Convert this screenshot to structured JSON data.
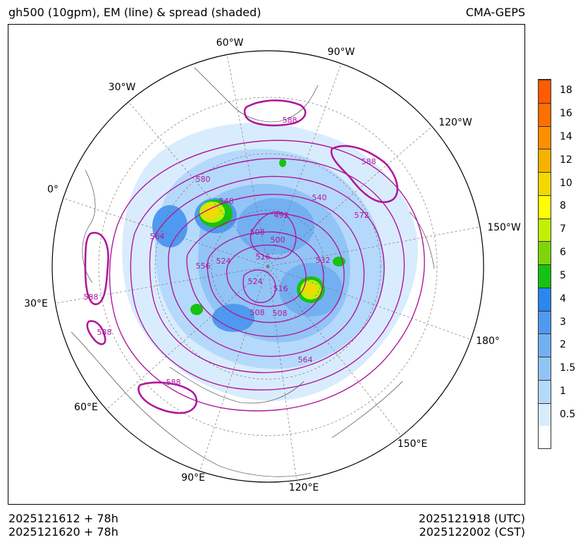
{
  "header": {
    "title": "gh500 (10gpm), EM (line) & spread (shaded)",
    "model": "CMA-GEPS"
  },
  "footer": {
    "init_utc": "2025121612 + 78h",
    "init_cst": "2025121620 + 78h",
    "valid_utc": "2025121918 (UTC)",
    "valid_cst": "2025122002 (CST)"
  },
  "map": {
    "longitude_labels": [
      {
        "text": "60°W"
      },
      {
        "text": "90°W"
      },
      {
        "text": "30°W"
      },
      {
        "text": "120°W"
      },
      {
        "text": "0°"
      },
      {
        "text": "150°W"
      },
      {
        "text": "30°E"
      },
      {
        "text": "180°"
      },
      {
        "text": "60°E"
      },
      {
        "text": "150°E"
      },
      {
        "text": "90°E"
      },
      {
        "text": "120°E"
      }
    ],
    "contour_labels": [
      "588",
      "588",
      "580",
      "548",
      "540",
      "572",
      "564",
      "556",
      "524",
      "508",
      "492",
      "500",
      "516",
      "532",
      "524",
      "516",
      "508",
      "508",
      "564",
      "588",
      "588",
      "588"
    ],
    "colors": {
      "contour": "#b0189c",
      "thick_contour": "#b0189c",
      "land": "#333333"
    }
  },
  "colorbar": {
    "ticks": [
      "0.5",
      "1",
      "1.5",
      "2",
      "3",
      "4",
      "5",
      "6",
      "7",
      "8",
      "10",
      "12",
      "14",
      "16",
      "18"
    ],
    "colors": [
      "#ffffff",
      "#d9ecfd",
      "#b5d9fb",
      "#92c4f6",
      "#72b0f2",
      "#4f9af0",
      "#2a86f0",
      "#16c212",
      "#7ed60a",
      "#c2ef06",
      "#fefe05",
      "#f4d800",
      "#f7b200",
      "#fe8f00",
      "#fe6e00",
      "#ff5c00"
    ]
  }
}
